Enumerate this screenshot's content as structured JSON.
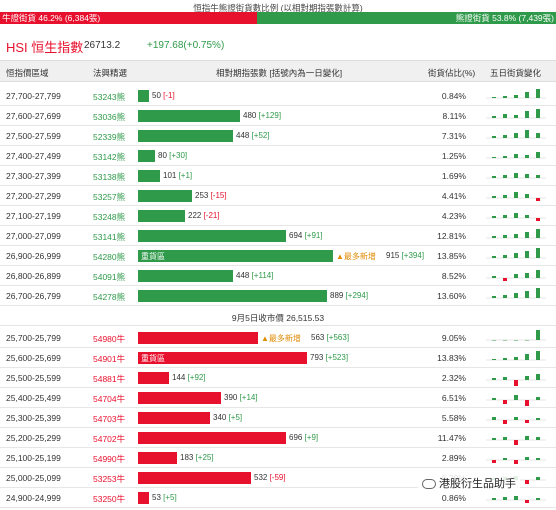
{
  "top": {
    "caption": "恒指牛熊證街貨數比例 (以相對期指張數計算)",
    "bull_label": "牛證街貨 46.2% (6,384張)",
    "bear_label": "熊證街貨 53.8% (7,439張)",
    "bull_share": 0.462
  },
  "index": {
    "name": "HSI 恒生指數",
    "price": "26713.2",
    "change": "+197.68(+0.75%)"
  },
  "headers": {
    "range": "恒指價區域",
    "code": "法興精選",
    "bar": "相對期指張數 [括號內為一日變化]",
    "pct": "街貨佔比(%)",
    "spark": "五日街貨變化"
  },
  "separator": "9月5日收市價 26,515.53",
  "heavy_label": "重貨區",
  "most_label": "▲最多新增",
  "colors": {
    "bull": "#e8112d",
    "bear": "#2f9a4a",
    "most": "#e08a00"
  },
  "bear_rows": [
    {
      "range": "27,700-27,799",
      "code": "53243熊",
      "value": 50,
      "value_label": "50",
      "delta": "[-1]",
      "pct": "0.84%",
      "spark": [
        0.1,
        0.2,
        0.3,
        0.6,
        0.9
      ]
    },
    {
      "range": "27,600-27,699",
      "code": "53036熊",
      "value": 480,
      "value_label": "480",
      "delta": "[+129]",
      "pct": "8.11%",
      "spark": [
        0.2,
        0.4,
        0.3,
        0.7,
        0.9
      ]
    },
    {
      "range": "27,500-27,599",
      "code": "52339熊",
      "value": 448,
      "value_label": "448",
      "delta": "[+52]",
      "pct": "7.31%",
      "spark": [
        0.2,
        0.3,
        0.5,
        0.8,
        0.5
      ]
    },
    {
      "range": "27,400-27,499",
      "code": "53142熊",
      "value": 80,
      "value_label": "80",
      "delta": "[+30]",
      "pct": "1.25%",
      "spark": [
        0.1,
        0.2,
        0.4,
        0.3,
        0.6
      ]
    },
    {
      "range": "27,300-27,399",
      "code": "53138熊",
      "value": 101,
      "value_label": "101",
      "delta": "[+1]",
      "pct": "1.69%",
      "spark": [
        0.2,
        0.3,
        0.5,
        0.4,
        0.3
      ]
    },
    {
      "range": "27,200-27,299",
      "code": "53257熊",
      "value": 253,
      "value_label": "253",
      "delta": "[-15]",
      "pct": "4.41%",
      "spark": [
        0.2,
        0.3,
        0.6,
        0.4,
        -0.3
      ]
    },
    {
      "range": "27,100-27,199",
      "code": "53248熊",
      "value": 222,
      "value_label": "222",
      "delta": "[-21]",
      "pct": "4.23%",
      "spark": [
        0.2,
        0.3,
        0.5,
        0.3,
        -0.3
      ]
    },
    {
      "range": "27,000-27,099",
      "code": "53141熊",
      "value": 694,
      "value_label": "694",
      "delta": "[+91]",
      "pct": "12.81%",
      "spark": [
        0.2,
        0.3,
        0.4,
        0.6,
        0.9
      ]
    },
    {
      "range": "26,900-26,999",
      "code": "54280熊",
      "value": 915,
      "value_label": "915",
      "delta": "[+394]",
      "pct": "13.85%",
      "heavy": true,
      "most": true,
      "spark": [
        0.2,
        0.3,
        0.5,
        0.7,
        1.0
      ]
    },
    {
      "range": "26,800-26,899",
      "code": "54091熊",
      "value": 448,
      "value_label": "448",
      "delta": "[+114]",
      "pct": "8.52%",
      "spark": [
        0.2,
        -0.3,
        0.4,
        0.5,
        0.8
      ]
    },
    {
      "range": "26,700-26,799",
      "code": "54278熊",
      "value": 889,
      "value_label": "889",
      "delta": "[+294]",
      "pct": "13.60%",
      "spark": [
        0.2,
        0.3,
        0.5,
        0.7,
        1.0
      ]
    }
  ],
  "bull_rows": [
    {
      "range": "25,700-25,799",
      "code": "54980牛",
      "value": 563,
      "value_label": "563",
      "delta": "[+563]",
      "pct": "9.05%",
      "most": true,
      "spark": [
        0.0,
        0.0,
        0.0,
        0.0,
        1.0
      ]
    },
    {
      "range": "25,600-25,699",
      "code": "54901牛",
      "value": 793,
      "value_label": "793",
      "delta": "[+523]",
      "pct": "13.83%",
      "heavy": true,
      "spark": [
        0.1,
        0.2,
        0.3,
        0.6,
        0.9
      ]
    },
    {
      "range": "25,500-25,599",
      "code": "54881牛",
      "value": 144,
      "value_label": "144",
      "delta": "[+92]",
      "pct": "2.32%",
      "spark": [
        0.2,
        0.3,
        -0.6,
        0.4,
        0.6
      ]
    },
    {
      "range": "25,400-25,499",
      "code": "54704牛",
      "value": 390,
      "value_label": "390",
      "delta": "[+14]",
      "pct": "6.51%",
      "spark": [
        0.2,
        -0.4,
        0.5,
        -0.6,
        0.3
      ]
    },
    {
      "range": "25,300-25,399",
      "code": "54703牛",
      "value": 340,
      "value_label": "340",
      "delta": "[+5]",
      "pct": "5.58%",
      "spark": [
        0.3,
        -0.4,
        0.3,
        -0.3,
        0.2
      ]
    },
    {
      "range": "25,200-25,299",
      "code": "54702牛",
      "value": 696,
      "value_label": "696",
      "delta": "[+9]",
      "pct": "11.47%",
      "spark": [
        0.2,
        0.3,
        -0.5,
        0.4,
        0.3
      ]
    },
    {
      "range": "25,100-25,199",
      "code": "54990牛",
      "value": 183,
      "value_label": "183",
      "delta": "[+25]",
      "pct": "2.89%",
      "spark": [
        -0.3,
        0.2,
        -0.4,
        0.3,
        0.2
      ]
    },
    {
      "range": "25,000-25,099",
      "code": "53253牛",
      "value": 532,
      "value_label": "532",
      "delta": "[-59]",
      "pct": "6.29%",
      "spark": [
        0.2,
        0.3,
        0.4,
        -0.4,
        0.3
      ]
    },
    {
      "range": "24,900-24,999",
      "code": "53250牛",
      "value": 53,
      "value_label": "53",
      "delta": "[+5]",
      "pct": "0.86%",
      "spark": [
        0.2,
        0.3,
        0.4,
        -0.3,
        0.2
      ]
    }
  ],
  "watermark": "港股衍生品助手"
}
